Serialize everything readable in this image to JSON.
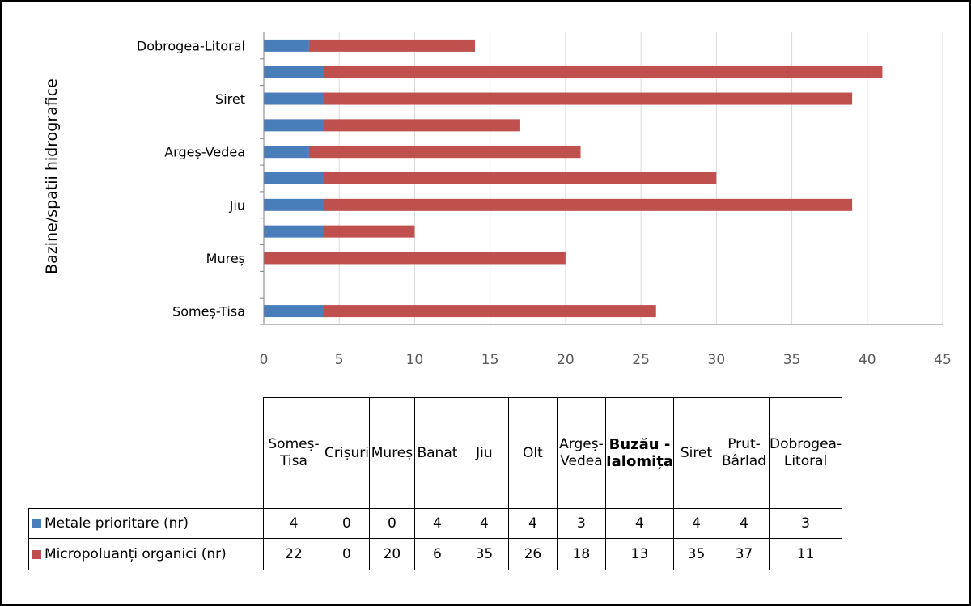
{
  "chart_data": {
    "type": "bar",
    "orientation": "horizontal",
    "stacked": true,
    "ylabel": "Bazine/spatii hidrografice",
    "xlim": [
      0,
      45
    ],
    "xticks": [
      0,
      5,
      10,
      15,
      20,
      25,
      30,
      35,
      40,
      45
    ],
    "grid": "vertical",
    "categories": [
      "Someș-Tisa",
      "Crișuri",
      "Mureș",
      "Banat",
      "Jiu",
      "Olt",
      "Argeș-Vedea",
      "Buzău-Ialomița",
      "Siret",
      "Prut-Bârlad",
      "Dobrogea-Litoral"
    ],
    "axis_labels_shown": [
      "Someș-Tisa",
      "Mureș",
      "Jiu",
      "Argeș-Vedea",
      "Siret",
      "Dobrogea-Litoral"
    ],
    "table_headers": [
      "Someș-Tisa",
      "Crișuri",
      "Mureș",
      "Banat",
      "Jiu",
      "Olt",
      "Argeș-Vedea",
      "Buzău - Ialomița",
      "Siret",
      "Prut-Bârlad",
      "Dobrogea-Litoral"
    ],
    "series": [
      {
        "name": "Metale prioritare (nr)",
        "color": "#4a7ebb",
        "values": [
          4,
          0,
          0,
          4,
          4,
          4,
          3,
          4,
          4,
          4,
          3
        ]
      },
      {
        "name": "Micropoluanți organici (nr)",
        "color": "#c0504d",
        "values": [
          22,
          0,
          20,
          6,
          35,
          26,
          18,
          13,
          35,
          37,
          11
        ]
      }
    ],
    "legend": "in-table"
  }
}
